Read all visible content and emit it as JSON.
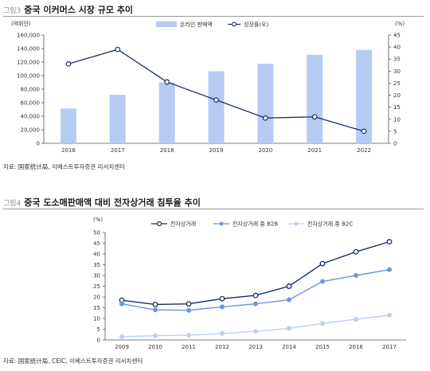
{
  "figure3": {
    "number": "그림3",
    "title": "중국 이커머스 시장 규모 추이",
    "source": "자료: 国家统计局, 이베스트투자증권 리서치센터"
  },
  "figure4": {
    "number": "그림4",
    "title": "중국 도소매판매액 대비 전자상거래 침투율 추이",
    "source": "자료: 国家统计局, CEIC, 이베스트투자증권 리서치센터"
  },
  "colors": {
    "bar": "#b7ccf2",
    "line1": "#1a2f66",
    "line2": "#6f95dc",
    "line3": "#bcd0ee"
  },
  "chart_data": [
    {
      "type": "bar+line",
      "categories": [
        "2016",
        "2017",
        "2018",
        "2019",
        "2020",
        "2021",
        "2022"
      ],
      "series": [
        {
          "name": "온라인 판매액",
          "axis": "left",
          "type": "bar",
          "values": [
            51500,
            71800,
            90000,
            106500,
            117500,
            130800,
            138000
          ]
        },
        {
          "name": "성장률(우)",
          "axis": "right",
          "type": "line",
          "values": [
            33,
            39,
            25.5,
            18,
            10.5,
            11,
            5
          ]
        }
      ],
      "ylabel_left": "(억위안)",
      "ylabel_right": "(%)",
      "ylim_left": [
        0,
        160000
      ],
      "yticks_left": [
        "0",
        "20,000",
        "40,000",
        "60,000",
        "80,000",
        "100,000",
        "120,000",
        "140,000",
        "160,000"
      ],
      "ylim_right": [
        0,
        45
      ],
      "yticks_right": [
        "0",
        "5",
        "10",
        "15",
        "20",
        "25",
        "30",
        "35",
        "40",
        "45"
      ],
      "legend_position": "top-center",
      "grid": false
    },
    {
      "type": "line",
      "categories": [
        "2009",
        "2010",
        "2011",
        "2012",
        "2013",
        "2014",
        "2015",
        "2016",
        "2017"
      ],
      "series": [
        {
          "name": "전자상거래",
          "values": [
            18.5,
            16.5,
            16.8,
            19.2,
            20.7,
            25,
            35.5,
            41,
            45.7
          ]
        },
        {
          "name": "전자상거래 중 B2B",
          "values": [
            16.8,
            14,
            13.8,
            15.4,
            16.8,
            18.7,
            27.2,
            30,
            32.7
          ]
        },
        {
          "name": "전자상거래 중 B2C",
          "values": [
            1.5,
            2,
            2.2,
            3,
            4,
            5.4,
            7.7,
            9.6,
            11.5
          ]
        }
      ],
      "ylabel": "(%)",
      "ylim": [
        0,
        50
      ],
      "yticks": [
        "0",
        "5",
        "10",
        "15",
        "20",
        "25",
        "30",
        "35",
        "40",
        "45",
        "50"
      ],
      "legend_position": "top-center",
      "grid": false
    }
  ]
}
